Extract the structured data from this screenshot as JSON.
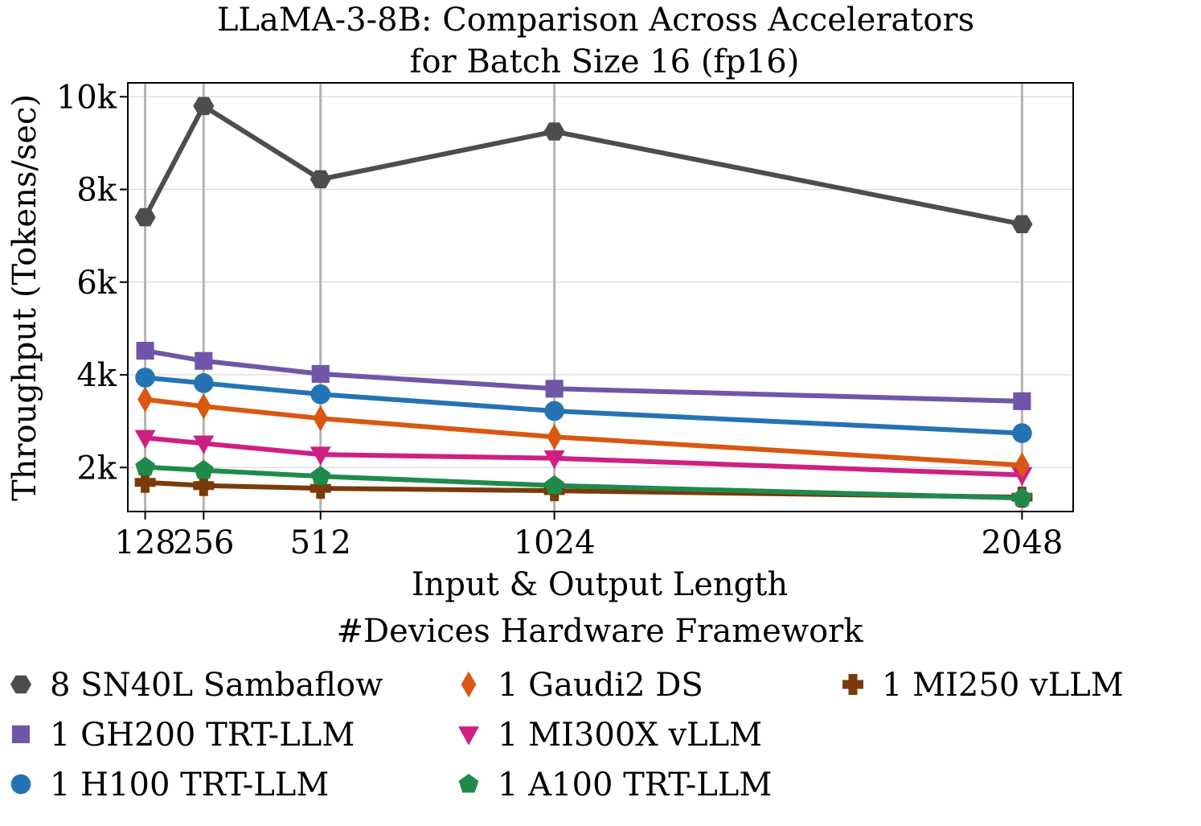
{
  "chart_data": {
    "type": "line",
    "title_line1": "LLaMA-3-8B: Comparison Across Accelerators",
    "title_line2": "for Batch Size 16 (fp16)",
    "xlabel": "Input & Output Length",
    "ylabel": "Throughput (Tokens/sec)",
    "x": [
      128,
      256,
      512,
      1024,
      2048
    ],
    "x_tick_labels": [
      "128",
      "256",
      "512",
      "1024",
      "2048"
    ],
    "y_ticks": [
      2000,
      4000,
      6000,
      8000,
      10000
    ],
    "y_tick_labels": [
      "2k",
      "4k",
      "6k",
      "8k",
      "10k"
    ],
    "ylim": [
      1050,
      10300
    ],
    "grid": true,
    "legend_title": "#Devices Hardware Framework",
    "legend_position": "bottom",
    "series": [
      {
        "name": "8 SN40L Sambaflow",
        "color": "#4d4d4d",
        "marker": "hexagon",
        "values": [
          7400,
          9800,
          8220,
          9250,
          7250
        ]
      },
      {
        "name": "1 GH200 TRT-LLM",
        "color": "#7055a8",
        "marker": "square",
        "values": [
          4520,
          4300,
          4020,
          3700,
          3430
        ]
      },
      {
        "name": "1 H100 TRT-LLM",
        "color": "#2474b4",
        "marker": "circle",
        "values": [
          3940,
          3820,
          3580,
          3220,
          2740
        ]
      },
      {
        "name": "1 Gaudi2 DS",
        "color": "#d95713",
        "marker": "diamond",
        "values": [
          3470,
          3320,
          3060,
          2660,
          2050
        ]
      },
      {
        "name": "1 MI300X vLLM",
        "color": "#cf1f83",
        "marker": "triangle-down",
        "values": [
          2640,
          2520,
          2280,
          2200,
          1840
        ]
      },
      {
        "name": "1 A100 TRT-LLM",
        "color": "#1f8a4c",
        "marker": "pentagon",
        "values": [
          2010,
          1940,
          1810,
          1610,
          1340
        ]
      },
      {
        "name": "1 MI250 vLLM",
        "color": "#7a3a0a",
        "marker": "plus",
        "values": [
          1680,
          1610,
          1550,
          1500,
          1360
        ]
      }
    ]
  }
}
